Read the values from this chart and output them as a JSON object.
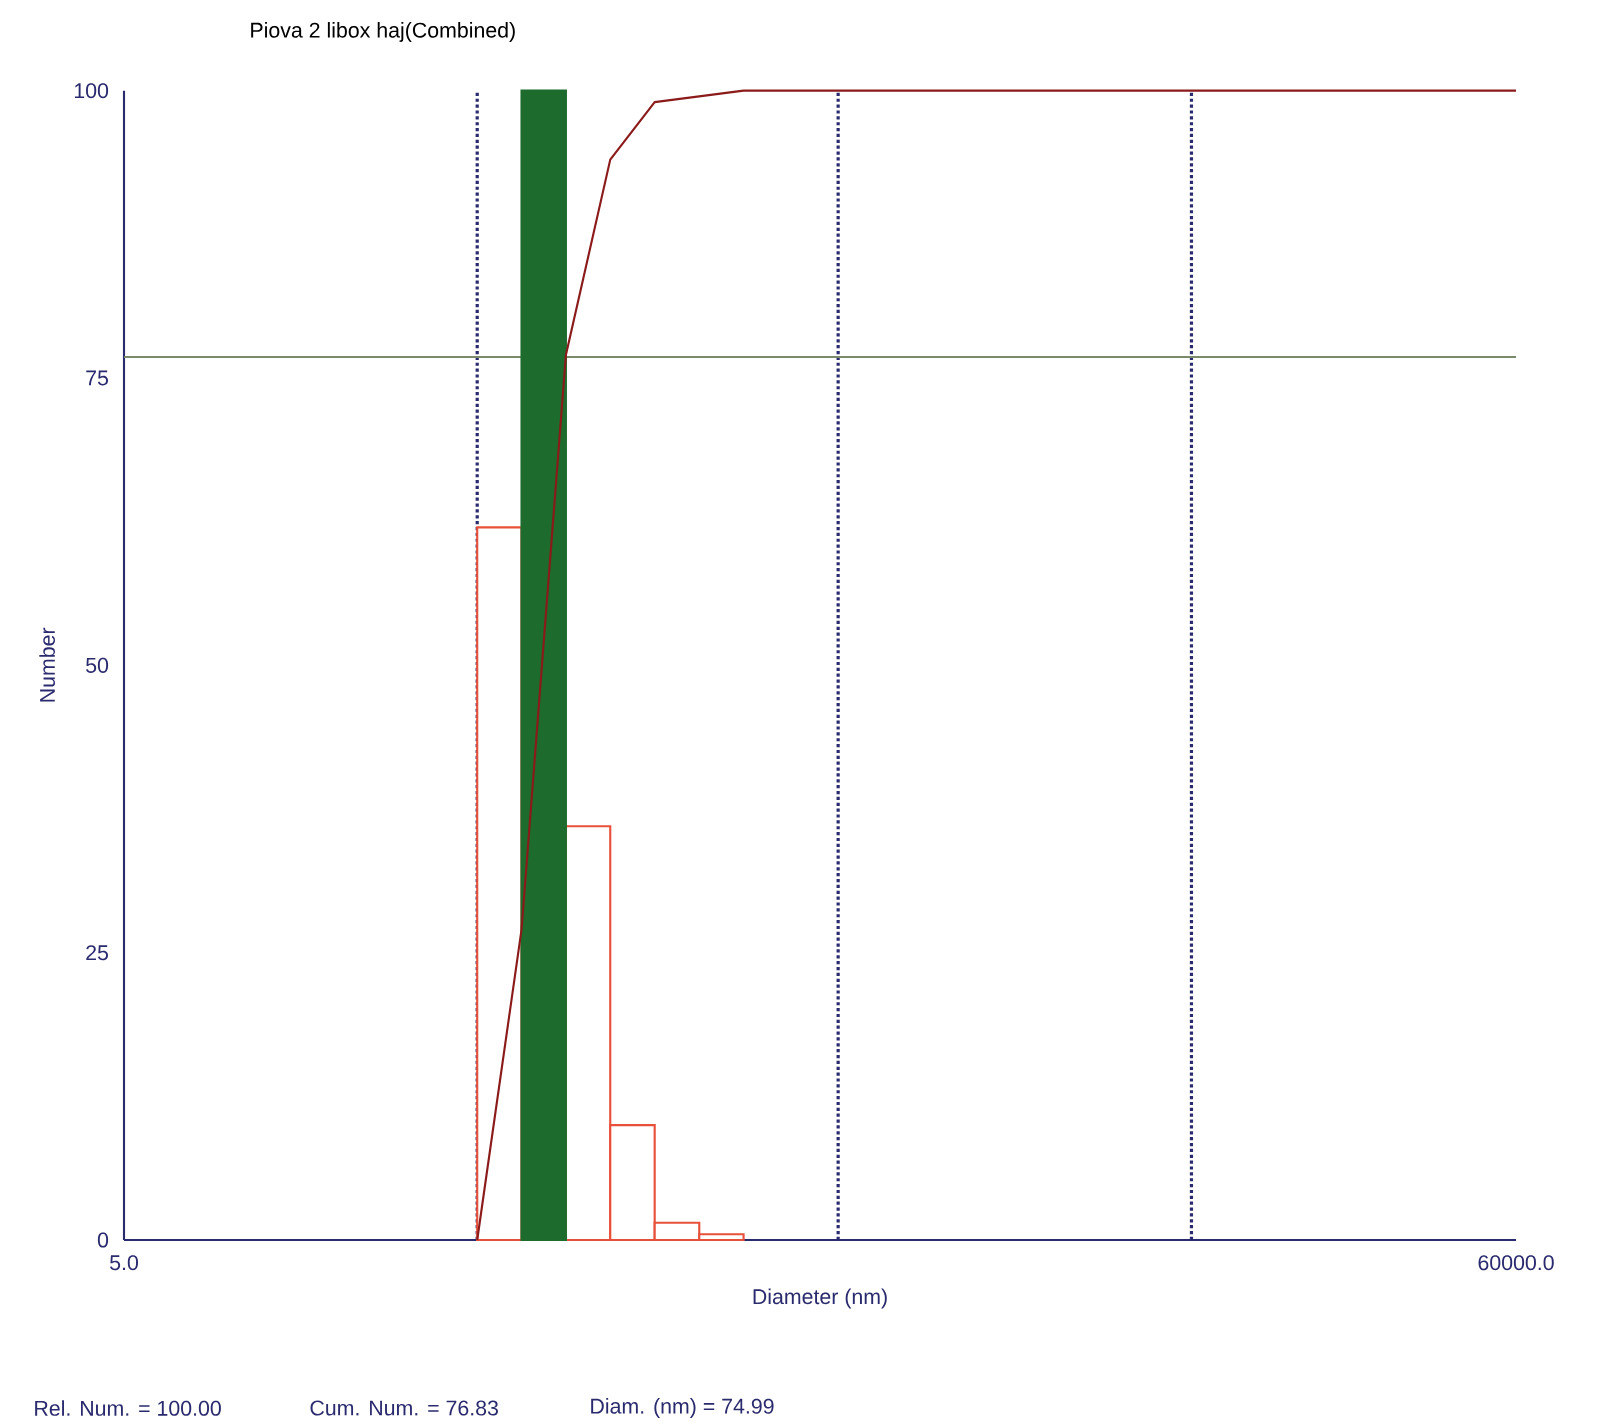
{
  "chart_data": {
    "type": "histogram",
    "title": "Piova 2 libox haj(Combined)",
    "xlabel": "Diameter (nm)",
    "ylabel": "Number",
    "log": "x",
    "xlim": [
      5,
      60000
    ],
    "ylim": [
      0,
      100
    ],
    "xticks": [
      {
        "value": 5,
        "label": "5.0"
      },
      {
        "value": 60000,
        "label": "60000.0"
      }
    ],
    "yticks": [
      0,
      25,
      50,
      75,
      100
    ],
    "bins": [
      54.2,
      73.1,
      98.6,
      133,
      179.5,
      242.5,
      327
    ],
    "series": [
      {
        "color": "#e8503a",
        "values": [
          62,
          null,
          36,
          10,
          1.5,
          0.5
        ]
      },
      {
        "color": "#1e6b2e",
        "values": [
          null,
          100,
          null,
          null,
          null,
          null
        ]
      },
      {
        "type": "line",
        "color": "#8b1a1a",
        "x": [
          54.2,
          73.1,
          98.6,
          133,
          179.5,
          327,
          60000
        ],
        "values": [
          0,
          27,
          77,
          94,
          99,
          100,
          100
        ]
      }
    ],
    "ref_lines": [
      {
        "axis": "x",
        "value": 54.2,
        "color": "#2a2a6e",
        "line_style": "dotted"
      },
      {
        "axis": "x",
        "value": 619,
        "color": "#2a2a6e",
        "line_style": "dotted"
      },
      {
        "axis": "x",
        "value": 6714,
        "color": "#2a2a6e",
        "line_style": "dotted"
      },
      {
        "axis": "y",
        "value": 76.83,
        "color": "#7a8a6a",
        "line_style": "solid"
      }
    ],
    "annotations": [
      "Rel. Num. = 100.00",
      "Cum. Num. = 76.83",
      "Diam. (nm) = 74.99"
    ]
  }
}
